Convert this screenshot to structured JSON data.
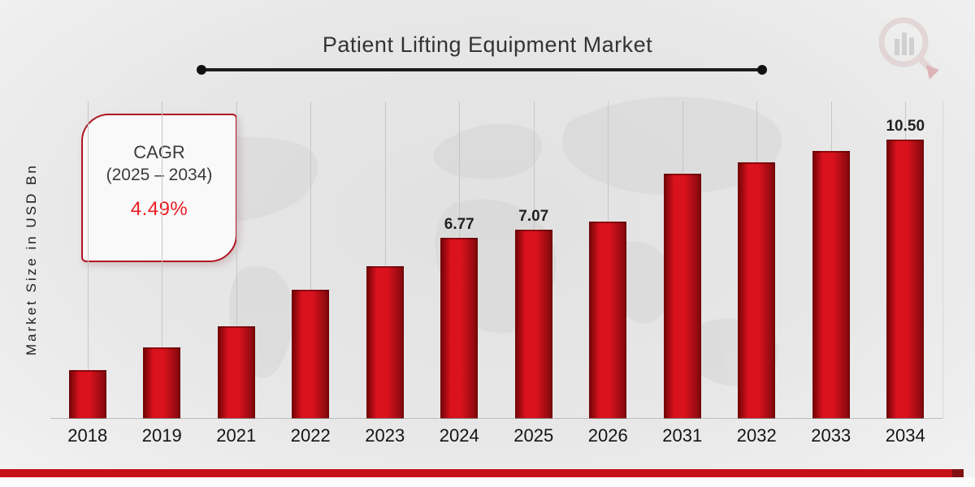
{
  "header": {
    "title": "Patient Lifting Equipment Market"
  },
  "cagr_box": {
    "line1": "CAGR",
    "line2": "(2025 – 2034)",
    "value": "4.49%",
    "value_color": "#ec1c24",
    "border_color": "#b01622"
  },
  "chart_data": {
    "type": "bar",
    "title": "Patient Lifting Equipment Market",
    "xlabel": "",
    "ylabel": "Market Size in USD Bn",
    "categories": [
      "2018",
      "2019",
      "2021",
      "2022",
      "2023",
      "2024",
      "2025",
      "2026",
      "2031",
      "2032",
      "2033",
      "2034"
    ],
    "values": [
      1.75,
      2.6,
      3.4,
      4.8,
      5.7,
      6.77,
      7.07,
      7.39,
      9.2,
      9.62,
      10.05,
      10.5
    ],
    "data_labels": {
      "2024": "6.77",
      "2025": "7.07",
      "2034": "10.50"
    },
    "ylim": [
      0,
      12
    ],
    "gridlines": "vertical-per-category",
    "legend": "none",
    "bar_colors": {
      "left": "#6e0305",
      "main": "#da121e",
      "right": "#8f0a10"
    }
  },
  "footer": {
    "accent_bar_color": "#c61017"
  },
  "icons": {
    "logo": "magnifier-bar-chart-logo-watermark",
    "background": "world-map-watermark"
  }
}
